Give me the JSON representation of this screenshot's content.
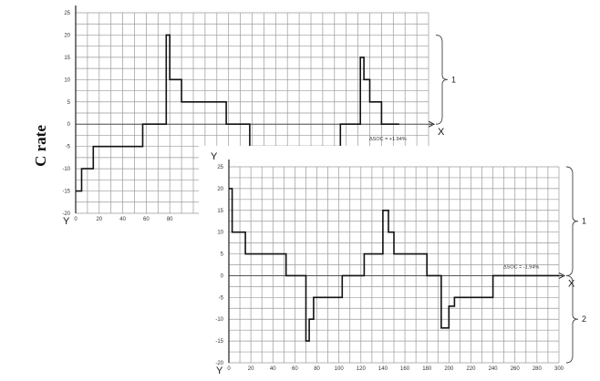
{
  "chart_data": [
    {
      "type": "line",
      "title": "",
      "xlabel": "X",
      "ylabel": "C rate",
      "yaxis_letter": "Y",
      "annotation": "ΔSOC = +1.94%",
      "zone_labels": [
        "1"
      ],
      "xlim": [
        0,
        300
      ],
      "ylim": [
        -20,
        25
      ],
      "x_ticks": [
        "0",
        "20",
        "40",
        "60",
        "80"
      ],
      "y_ticks": [
        "25",
        "20",
        "15",
        "10",
        "5",
        "0",
        "-5",
        "-10",
        "-15",
        "-20"
      ],
      "series": [
        {
          "x": [
            0,
            5,
            5,
            15,
            15,
            57,
            57,
            77,
            77,
            80,
            80,
            90,
            90,
            128,
            128,
            148,
            148,
            225,
            225,
            242,
            242,
            245,
            245,
            250,
            250,
            260,
            260,
            275,
            275
          ],
          "y": [
            -15,
            -15,
            -10,
            -10,
            -5,
            -5,
            0,
            0,
            20,
            20,
            10,
            10,
            5,
            5,
            0,
            0,
            -5,
            -5,
            0,
            0,
            15,
            15,
            10,
            10,
            5,
            5,
            0,
            0,
            0
          ]
        }
      ]
    },
    {
      "type": "line",
      "title": "",
      "xlabel": "X",
      "yaxis_letter": "Y",
      "annotation": "ΔSOC = -1.94%",
      "zone_labels": [
        "1",
        "2"
      ],
      "xlim": [
        0,
        300
      ],
      "ylim": [
        -20,
        25
      ],
      "x_ticks": [
        "0",
        "20",
        "40",
        "60",
        "80",
        "100",
        "120",
        "140",
        "160",
        "180",
        "200",
        "220",
        "240",
        "260",
        "280",
        "300"
      ],
      "y_ticks": [
        "25",
        "20",
        "15",
        "10",
        "5",
        "0",
        "-5",
        "-10",
        "-15",
        "-20"
      ],
      "series": [
        {
          "x": [
            0,
            3,
            3,
            10,
            10,
            15,
            15,
            40,
            40,
            52,
            52,
            70,
            70,
            73,
            73,
            77,
            77,
            80,
            80,
            103,
            103,
            123,
            123,
            140,
            140,
            145,
            145,
            150,
            150,
            180,
            180,
            193,
            193,
            200,
            200,
            205,
            205,
            210,
            210,
            240,
            240,
            300
          ],
          "y": [
            20,
            20,
            10,
            10,
            10,
            10,
            5,
            5,
            5,
            5,
            0,
            0,
            -15,
            -15,
            -10,
            -10,
            -5,
            -5,
            -5,
            -5,
            0,
            0,
            5,
            5,
            15,
            15,
            10,
            10,
            5,
            5,
            0,
            0,
            -12,
            -12,
            -7,
            -7,
            -5,
            -5,
            -5,
            -5,
            0,
            0
          ]
        }
      ]
    }
  ]
}
